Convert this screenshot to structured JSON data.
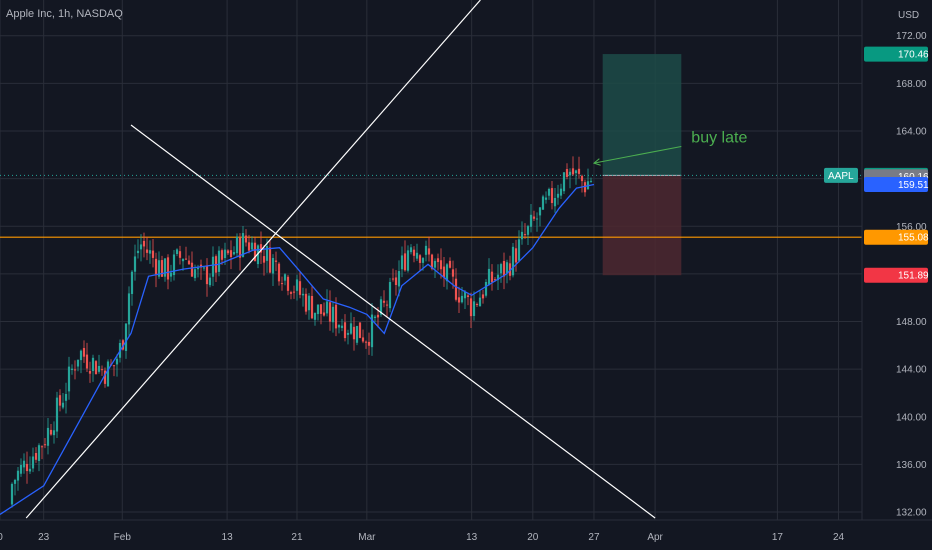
{
  "header": {
    "title": "Apple Inc, 1h, NASDAQ"
  },
  "currency_label": "USD",
  "annotation": {
    "text": "buy late"
  },
  "colors": {
    "background": "#131722",
    "up": "#26a69a",
    "down": "#ef5350",
    "ma": "#2962ff",
    "level_line": "#ff9800",
    "trendline": "#ffffff",
    "annotation": "#4caf50",
    "target_zone": "#1d4b48",
    "stop_zone": "#4d2830"
  },
  "chart_data": {
    "type": "candlestick",
    "title": "Apple Inc, 1h, NASDAQ",
    "y_axis": {
      "label": "USD",
      "range": [
        131.5,
        175
      ],
      "ticks": [
        132,
        136,
        140,
        144,
        148,
        152,
        156,
        160,
        164,
        168,
        172
      ],
      "tick_labels": [
        "132.00",
        "136.00",
        "140.00",
        "144.00",
        "148.00",
        "152.00",
        "156.00",
        "160.00",
        "164.00",
        "168.00",
        "172.00"
      ]
    },
    "x_axis": {
      "range": [
        "2023-01-18",
        "2023-04-26"
      ],
      "ticks": [
        {
          "date": "2023-01-18",
          "label": "0"
        },
        {
          "date": "2023-01-23",
          "label": "23"
        },
        {
          "date": "2023-02-01",
          "label": "Feb"
        },
        {
          "date": "2023-02-13",
          "label": "13"
        },
        {
          "date": "2023-02-21",
          "label": "21"
        },
        {
          "date": "2023-03-01",
          "label": "Mar"
        },
        {
          "date": "2023-03-13",
          "label": "13"
        },
        {
          "date": "2023-03-20",
          "label": "20"
        },
        {
          "date": "2023-03-27",
          "label": "27"
        },
        {
          "date": "2023-04-03",
          "label": "Apr"
        },
        {
          "date": "2023-04-17",
          "label": "17"
        },
        {
          "date": "2023-04-24",
          "label": "24"
        }
      ]
    },
    "price_path": [
      [
        "2023-01-18",
        132.6
      ],
      [
        "2023-01-20",
        135.2
      ],
      [
        "2023-01-23",
        138.0
      ],
      [
        "2023-01-25",
        141.3
      ],
      [
        "2023-01-27",
        145.5
      ],
      [
        "2023-01-30",
        143.8
      ],
      [
        "2023-01-31",
        144.2
      ],
      [
        "2023-02-01",
        146.2
      ],
      [
        "2023-02-02",
        151.8
      ],
      [
        "2023-02-03",
        154.6
      ],
      [
        "2023-02-06",
        152.1
      ],
      [
        "2023-02-08",
        153.7
      ],
      [
        "2023-02-10",
        151.6
      ],
      [
        "2023-02-13",
        153.4
      ],
      [
        "2023-02-15",
        154.8
      ],
      [
        "2023-02-17",
        153.9
      ],
      [
        "2023-02-19",
        152.5
      ],
      [
        "2023-02-21",
        150.6
      ],
      [
        "2023-02-23",
        149.0
      ],
      [
        "2023-02-25",
        148.4
      ],
      [
        "2023-02-27",
        147.6
      ],
      [
        "2023-03-01",
        146.8
      ],
      [
        "2023-03-03",
        149.2
      ],
      [
        "2023-03-04",
        150.8
      ],
      [
        "2023-03-06",
        154.6
      ],
      [
        "2023-03-08",
        153.4
      ],
      [
        "2023-03-10",
        151.8
      ],
      [
        "2023-03-13",
        149.3
      ],
      [
        "2023-03-15",
        151.3
      ],
      [
        "2023-03-17",
        152.5
      ],
      [
        "2023-03-20",
        156.2
      ],
      [
        "2023-03-22",
        158.2
      ],
      [
        "2023-03-24",
        160.8
      ],
      [
        "2023-03-26",
        159.5
      ],
      [
        "2023-03-27",
        160.27
      ]
    ],
    "moving_average": [
      [
        "2023-01-18",
        131.8
      ],
      [
        "2023-01-23",
        134.2
      ],
      [
        "2023-01-27",
        139.5
      ],
      [
        "2023-01-30",
        143.5
      ],
      [
        "2023-02-02",
        147.0
      ],
      [
        "2023-02-04",
        151.8
      ],
      [
        "2023-02-08",
        152.4
      ],
      [
        "2023-02-12",
        152.8
      ],
      [
        "2023-02-16",
        154.0
      ],
      [
        "2023-02-19",
        154.2
      ],
      [
        "2023-02-21",
        152.5
      ],
      [
        "2023-02-24",
        149.9
      ],
      [
        "2023-02-27",
        149.2
      ],
      [
        "2023-03-01",
        148.6
      ],
      [
        "2023-03-03",
        147.0
      ],
      [
        "2023-03-05",
        151.0
      ],
      [
        "2023-03-08",
        152.8
      ],
      [
        "2023-03-11",
        151.0
      ],
      [
        "2023-03-13",
        150.2
      ],
      [
        "2023-03-17",
        152.0
      ],
      [
        "2023-03-20",
        154.2
      ],
      [
        "2023-03-23",
        157.5
      ],
      [
        "2023-03-25",
        159.2
      ],
      [
        "2023-03-27",
        159.51
      ]
    ],
    "horizontal_levels": [
      {
        "value": 155.08,
        "label": "155.08",
        "color": "#ff9800",
        "style": "solid"
      },
      {
        "value": 160.27,
        "label": "160.27",
        "color": "#26a69a",
        "style": "dotted"
      }
    ],
    "price_tags": [
      {
        "value": 170.46,
        "label": "170.46",
        "color": "#089981"
      },
      {
        "value": 160.27,
        "label": "160.27",
        "color": "#089981"
      },
      {
        "value": 160.16,
        "label": "160.16",
        "color": "#787b86"
      },
      {
        "value": 159.51,
        "label": "159.51",
        "color": "#2962ff"
      },
      {
        "value": 155.08,
        "label": "155.08",
        "color": "#ff9800"
      },
      {
        "value": 151.89,
        "label": "151.89",
        "color": "#f23645"
      }
    ],
    "symbol_tag": {
      "text": "AAPL",
      "value": 160.27
    },
    "trendlines": [
      {
        "from": [
          "2023-01-21",
          131.5
        ],
        "to": [
          "2023-03-14",
          175.0
        ]
      },
      {
        "from": [
          "2023-02-02",
          164.5
        ],
        "to": [
          "2023-04-03",
          131.5
        ]
      }
    ],
    "position": {
      "type": "long",
      "start": "2023-03-28",
      "end": "2023-04-06",
      "entry": 160.27,
      "target": 170.46,
      "stop": 151.89
    },
    "annotation_arrow": {
      "from": [
        "2023-04-06",
        162.7
      ],
      "to": [
        "2023-03-27",
        161.3
      ],
      "text": "buy late"
    }
  }
}
